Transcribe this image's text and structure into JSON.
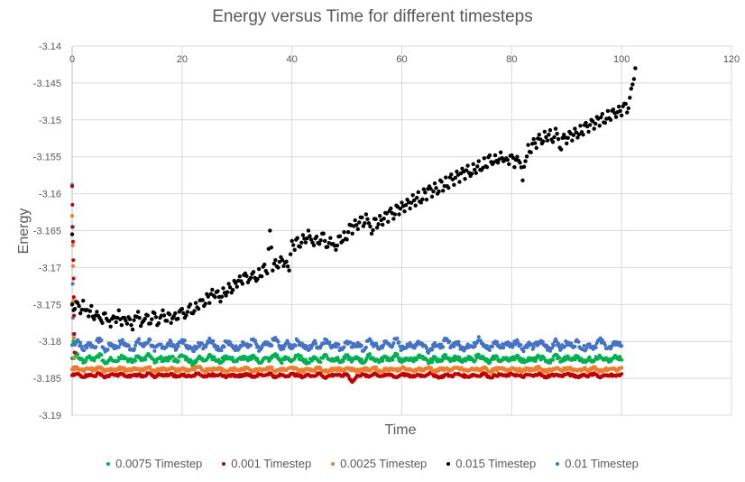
{
  "chart_data": {
    "type": "scatter",
    "title": "Energy versus Time for different timesteps",
    "xlabel": "Time",
    "ylabel": "Energy",
    "xlim": [
      0,
      120
    ],
    "ylim": [
      -3.19,
      -3.14
    ],
    "xticks": [
      "0",
      "20",
      "40",
      "60",
      "80",
      "100",
      "120"
    ],
    "yticks": [
      "-3.14",
      "-3.145",
      "-3.15",
      "-3.155",
      "-3.16",
      "-3.165",
      "-3.17",
      "-3.175",
      "-3.18",
      "-3.185",
      "-3.19"
    ],
    "grid": true,
    "x_axis_position": "top",
    "legend": "bottom",
    "series": [
      {
        "name": "0.0075 Timestep",
        "color": "#00b050",
        "x_step": 1,
        "x_start": 0,
        "initial_transient": [
          [
            0,
            -3.1645
          ],
          [
            0.1,
            -3.1748
          ],
          [
            0.2,
            -3.18
          ]
        ],
        "values": [
          -3.1823,
          -3.1818,
          -3.1829,
          -3.1821,
          -3.1826,
          -3.1817,
          -3.183,
          -3.1822,
          -3.1827,
          -3.1819,
          -3.1824,
          -3.1828,
          -3.182,
          -3.1825,
          -3.1818,
          -3.1829,
          -3.1823,
          -3.1826,
          -3.1821,
          -3.1827,
          -3.1819,
          -3.1824,
          -3.183,
          -3.1822,
          -3.1826,
          -3.1818,
          -3.1825,
          -3.1828,
          -3.182,
          -3.1824,
          -3.1827,
          -3.1821,
          -3.1826,
          -3.1819,
          -3.1829,
          -3.1823,
          -3.1825,
          -3.1817,
          -3.1828,
          -3.1822,
          -3.1826,
          -3.182,
          -3.1824,
          -3.1829,
          -3.1821,
          -3.1827,
          -3.1818,
          -3.1825,
          -3.1823,
          -3.1828,
          -3.182,
          -3.1826,
          -3.1822,
          -3.1829,
          -3.1819,
          -3.1824,
          -3.1827,
          -3.1821,
          -3.1825,
          -3.1818,
          -3.1828,
          -3.1823,
          -3.1826,
          -3.182,
          -3.1824,
          -3.1829,
          -3.1822,
          -3.1827,
          -3.1819,
          -3.1825,
          -3.1821,
          -3.1828,
          -3.1823,
          -3.1826,
          -3.1818,
          -3.1824,
          -3.1829,
          -3.182,
          -3.1827,
          -3.1822,
          -3.1825,
          -3.1819,
          -3.1828,
          -3.1823,
          -3.1826,
          -3.1821,
          -3.1824,
          -3.1829,
          -3.1818,
          -3.1827,
          -3.1822,
          -3.1825,
          -3.182,
          -3.1828,
          -3.1823,
          -3.1826,
          -3.1819,
          -3.1824,
          -3.1827,
          -3.1821,
          -3.1825
        ]
      },
      {
        "name": "0.001 Timestep",
        "color": "#c00000",
        "x_step": 1,
        "x_start": 0,
        "initial_transient": [
          [
            0,
            -3.159
          ],
          [
            0.05,
            -3.1615
          ],
          [
            0.1,
            -3.1645
          ],
          [
            0.15,
            -3.1665
          ],
          [
            0.2,
            -3.169
          ],
          [
            0.25,
            -3.1715
          ],
          [
            0.3,
            -3.174
          ],
          [
            0.35,
            -3.1765
          ],
          [
            0.4,
            -3.179
          ],
          [
            0.45,
            -3.1815
          ],
          [
            0.5,
            -3.1835
          ]
        ],
        "values": [
          -3.1846,
          -3.1844,
          -3.1848,
          -3.1845,
          -3.1847,
          -3.1843,
          -3.1849,
          -3.1845,
          -3.1846,
          -3.1844,
          -3.1848,
          -3.1846,
          -3.1845,
          -3.1847,
          -3.1843,
          -3.1849,
          -3.1845,
          -3.1846,
          -3.1844,
          -3.1848,
          -3.1845,
          -3.1847,
          -3.1846,
          -3.1843,
          -3.1848,
          -3.1845,
          -3.1846,
          -3.1844,
          -3.1849,
          -3.1845,
          -3.1847,
          -3.1846,
          -3.1844,
          -3.1848,
          -3.1845,
          -3.1846,
          -3.1843,
          -3.1849,
          -3.1845,
          -3.1847,
          -3.1844,
          -3.1846,
          -3.1848,
          -3.1845,
          -3.1847,
          -3.1843,
          -3.1849,
          -3.1846,
          -3.1845,
          -3.1847,
          -3.1844,
          -3.1855,
          -3.1846,
          -3.1845,
          -3.1848,
          -3.1843,
          -3.1847,
          -3.1846,
          -3.1845,
          -3.1849,
          -3.1844,
          -3.1846,
          -3.1848,
          -3.1845,
          -3.1847,
          -3.1843,
          -3.1846,
          -3.1849,
          -3.1845,
          -3.1847,
          -3.1844,
          -3.1846,
          -3.1848,
          -3.1845,
          -3.1847,
          -3.1843,
          -3.1849,
          -3.1846,
          -3.1845,
          -3.1847,
          -3.1844,
          -3.1846,
          -3.1848,
          -3.1845,
          -3.1847,
          -3.1843,
          -3.1849,
          -3.1846,
          -3.1845,
          -3.1847,
          -3.1844,
          -3.1846,
          -3.1848,
          -3.1845,
          -3.1847,
          -3.1843,
          -3.1849,
          -3.1846,
          -3.1845,
          -3.1847,
          -3.1844
        ]
      },
      {
        "name": "0.0025 Timestep",
        "color": "#ed7d31",
        "x_step": 1,
        "x_start": 0,
        "initial_transient": [
          [
            0,
            -3.163
          ],
          [
            0.1,
            -3.167
          ],
          [
            0.15,
            -3.1698
          ],
          [
            0.2,
            -3.1745
          ],
          [
            0.3,
            -3.1795
          ],
          [
            0.4,
            -3.1822
          ]
        ],
        "values": [
          -3.1838,
          -3.1836,
          -3.184,
          -3.1837,
          -3.1839,
          -3.1835,
          -3.1841,
          -3.1837,
          -3.1838,
          -3.1836,
          -3.184,
          -3.1838,
          -3.1837,
          -3.1839,
          -3.1835,
          -3.1841,
          -3.1837,
          -3.1838,
          -3.1836,
          -3.184,
          -3.1837,
          -3.1839,
          -3.1838,
          -3.1835,
          -3.184,
          -3.1837,
          -3.1838,
          -3.1836,
          -3.1841,
          -3.1837,
          -3.1839,
          -3.1838,
          -3.1836,
          -3.184,
          -3.1837,
          -3.1838,
          -3.1835,
          -3.1841,
          -3.1837,
          -3.1839,
          -3.1836,
          -3.1838,
          -3.184,
          -3.1837,
          -3.1839,
          -3.1835,
          -3.1841,
          -3.1838,
          -3.1837,
          -3.1839,
          -3.1836,
          -3.1838,
          -3.184,
          -3.1837,
          -3.1839,
          -3.1835,
          -3.1841,
          -3.1838,
          -3.1837,
          -3.1839,
          -3.1836,
          -3.1838,
          -3.184,
          -3.1837,
          -3.1839,
          -3.1835,
          -3.1841,
          -3.1838,
          -3.1837,
          -3.1839,
          -3.1836,
          -3.1838,
          -3.184,
          -3.1837,
          -3.1839,
          -3.1835,
          -3.1841,
          -3.1838,
          -3.1837,
          -3.1839,
          -3.1836,
          -3.1838,
          -3.184,
          -3.1837,
          -3.1839,
          -3.1835,
          -3.1841,
          -3.1838,
          -3.1837,
          -3.1839,
          -3.1836,
          -3.1838,
          -3.184,
          -3.1837,
          -3.1839,
          -3.1835,
          -3.1841,
          -3.1838,
          -3.1837,
          -3.1839,
          -3.1836
        ]
      },
      {
        "name": "0.015 Timestep",
        "color": "#000000",
        "x_step": 0.5,
        "x_start": 0,
        "initial_transient": [
          [
            0,
            -3.1655
          ]
        ],
        "values": [
          -3.175,
          -3.1756,
          -3.1748,
          -3.1762,
          -3.1745,
          -3.1758,
          -3.1766,
          -3.1752,
          -3.177,
          -3.176,
          -3.1768,
          -3.1775,
          -3.1762,
          -3.1772,
          -3.178,
          -3.1766,
          -3.1774,
          -3.1758,
          -3.1778,
          -3.1768,
          -3.1776,
          -3.177,
          -3.1784,
          -3.1766,
          -3.176,
          -3.1779,
          -3.1772,
          -3.1764,
          -3.1776,
          -3.177,
          -3.1762,
          -3.1778,
          -3.1768,
          -3.1758,
          -3.1772,
          -3.1762,
          -3.1775,
          -3.1766,
          -3.177,
          -3.176,
          -3.1756,
          -3.1768,
          -3.176,
          -3.175,
          -3.1762,
          -3.1748,
          -3.1756,
          -3.1744,
          -3.1752,
          -3.1736,
          -3.1748,
          -3.173,
          -3.174,
          -3.1732,
          -3.1746,
          -3.1728,
          -3.1738,
          -3.1722,
          -3.1734,
          -3.1718,
          -3.1726,
          -3.1712,
          -3.1722,
          -3.1708,
          -3.172,
          -3.1714,
          -3.1706,
          -3.1718,
          -3.1702,
          -3.1712,
          -3.1696,
          -3.1708,
          -3.165,
          -3.1704,
          -3.169,
          -3.17,
          -3.1686,
          -3.1698,
          -3.1692,
          -3.1704,
          -3.1664,
          -3.1676,
          -3.166,
          -3.1672,
          -3.1656,
          -3.1666,
          -3.165,
          -3.1662,
          -3.167,
          -3.1658,
          -3.1668,
          -3.1654,
          -3.1664,
          -3.1672,
          -3.166,
          -3.1668,
          -3.1676,
          -3.1658,
          -3.1666,
          -3.1652,
          -3.1662,
          -3.1642,
          -3.1654,
          -3.1636,
          -3.1648,
          -3.1632,
          -3.1644,
          -3.1628,
          -3.164,
          -3.1654,
          -3.1634,
          -3.1646,
          -3.163,
          -3.1642,
          -3.1626,
          -3.1638,
          -3.162,
          -3.1634,
          -3.1616,
          -3.1628,
          -3.1612,
          -3.1624,
          -3.1608,
          -3.162,
          -3.1602,
          -3.1616,
          -3.1598,
          -3.1612,
          -3.1594,
          -3.1608,
          -3.159,
          -3.1604,
          -3.1586,
          -3.16,
          -3.1582,
          -3.1596,
          -3.1578,
          -3.1592,
          -3.1574,
          -3.1588,
          -3.157,
          -3.1584,
          -3.1566,
          -3.158,
          -3.1562,
          -3.1576,
          -3.156,
          -3.1572,
          -3.1556,
          -3.1568,
          -3.1552,
          -3.1564,
          -3.1548,
          -3.156,
          -3.1548,
          -3.1558,
          -3.1544,
          -3.1556,
          -3.1552,
          -3.156,
          -3.1548,
          -3.1564,
          -3.155,
          -3.1558,
          -3.1582,
          -3.1556,
          -3.1534,
          -3.1544,
          -3.1526,
          -3.1538,
          -3.152,
          -3.1532,
          -3.1516,
          -3.1528,
          -3.1514,
          -3.153,
          -3.1512,
          -3.1526,
          -3.154,
          -3.152,
          -3.1532,
          -3.1516,
          -3.1528,
          -3.1512,
          -3.1524,
          -3.1508,
          -3.152,
          -3.1504,
          -3.1516,
          -3.15,
          -3.1512,
          -3.1496,
          -3.1508,
          -3.1492,
          -3.1504,
          -3.1488,
          -3.15,
          -3.1486,
          -3.1496,
          -3.1482,
          -3.1494,
          -3.1478,
          -3.149,
          -3.147,
          -3.1452,
          -3.143
        ]
      },
      {
        "name": "0.01 Timestep",
        "color": "#4472c4",
        "x_step": 1,
        "x_start": 0,
        "initial_transient": [
          [
            0,
            -3.1588
          ],
          [
            0.1,
            -3.1722
          ],
          [
            0.15,
            -3.1768
          ],
          [
            0.2,
            -3.179
          ]
        ],
        "values": [
          -3.1805,
          -3.1798,
          -3.1812,
          -3.1802,
          -3.1808,
          -3.1796,
          -3.1814,
          -3.1803,
          -3.1809,
          -3.18,
          -3.1806,
          -3.1811,
          -3.1799,
          -3.1807,
          -3.1797,
          -3.1813,
          -3.1804,
          -3.1808,
          -3.1801,
          -3.181,
          -3.1798,
          -3.1806,
          -3.1813,
          -3.1802,
          -3.1808,
          -3.1796,
          -3.1805,
          -3.1811,
          -3.18,
          -3.1806,
          -3.181,
          -3.1801,
          -3.1808,
          -3.1797,
          -3.1813,
          -3.1804,
          -3.1806,
          -3.1795,
          -3.1811,
          -3.1802,
          -3.1808,
          -3.1799,
          -3.1805,
          -3.1812,
          -3.1801,
          -3.1809,
          -3.1797,
          -3.1806,
          -3.1803,
          -3.1811,
          -3.18,
          -3.1808,
          -3.1802,
          -3.1813,
          -3.1798,
          -3.1805,
          -3.181,
          -3.1801,
          -3.1806,
          -3.1797,
          -3.1811,
          -3.1804,
          -3.1808,
          -3.18,
          -3.1805,
          -3.1813,
          -3.1802,
          -3.1809,
          -3.1798,
          -3.1806,
          -3.1801,
          -3.1811,
          -3.1804,
          -3.1808,
          -3.1794,
          -3.1805,
          -3.1812,
          -3.18,
          -3.1809,
          -3.1802,
          -3.1806,
          -3.1798,
          -3.1811,
          -3.1803,
          -3.1808,
          -3.1801,
          -3.1805,
          -3.1813,
          -3.1797,
          -3.181,
          -3.1802,
          -3.1806,
          -3.18,
          -3.1811,
          -3.1804,
          -3.1808,
          -3.1798,
          -3.1805,
          -3.181,
          -3.1801,
          -3.1806
        ]
      }
    ]
  }
}
